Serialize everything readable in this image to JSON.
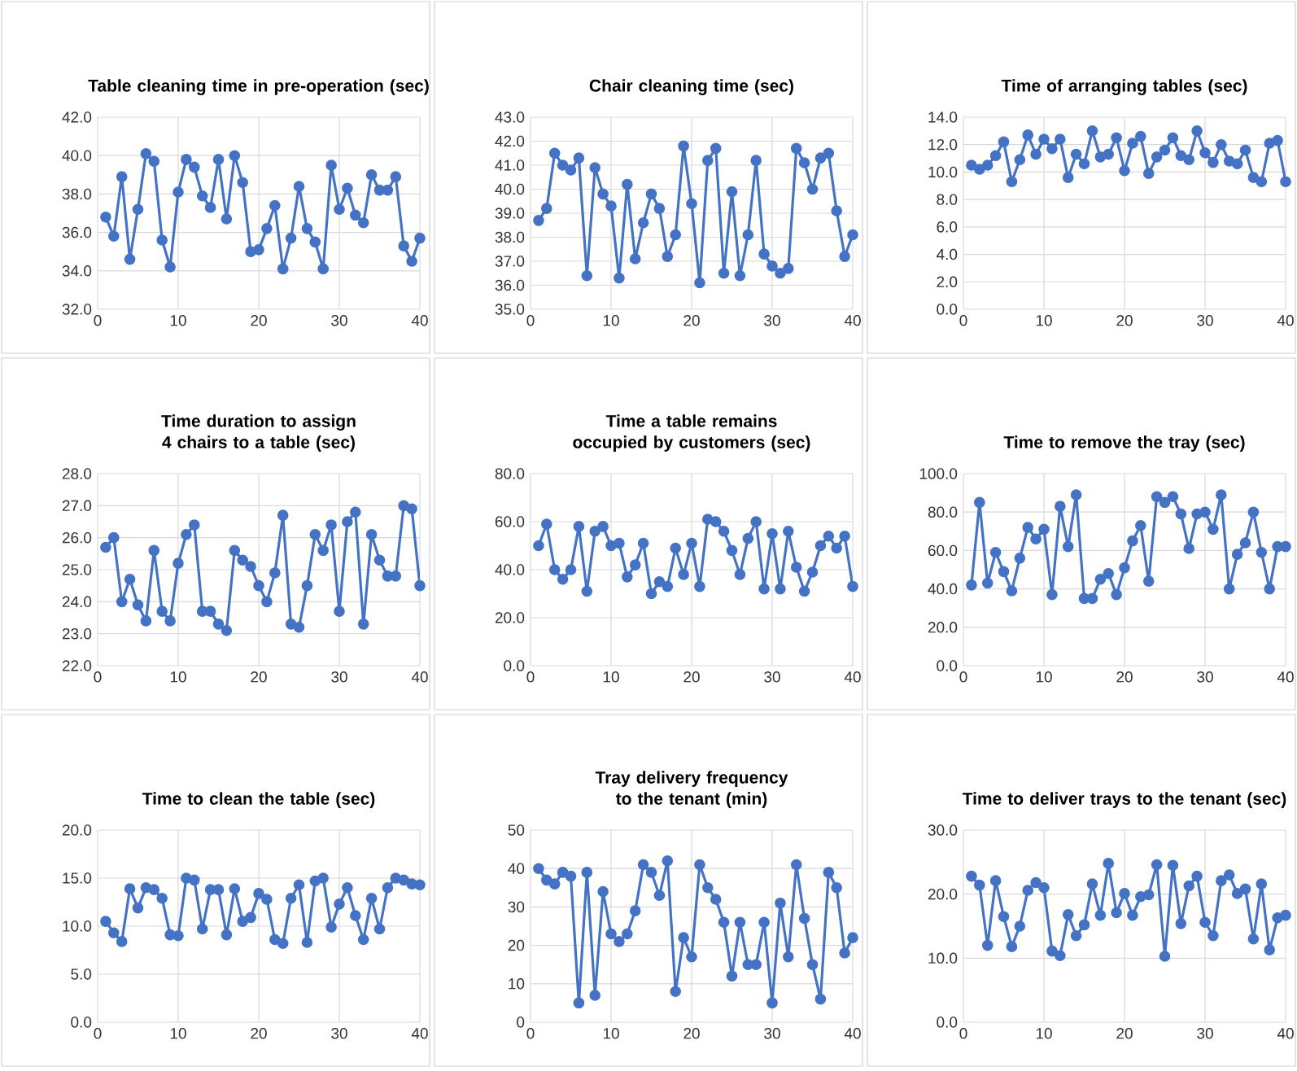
{
  "chart_data": [
    {
      "type": "line",
      "title": "Table cleaning time in pre-operation (sec)",
      "color": "#4472c4",
      "marker": "circle",
      "grid": true,
      "xlim": [
        0,
        40
      ],
      "xticks": [
        0,
        10,
        20,
        30,
        40
      ],
      "ylim": [
        32,
        42
      ],
      "yticks": [
        {
          "value": 32,
          "label": "32.0"
        },
        {
          "value": 34,
          "label": "34.0"
        },
        {
          "value": 36,
          "label": "36.0"
        },
        {
          "value": 38,
          "label": "38.0"
        },
        {
          "value": 40,
          "label": "40.0"
        },
        {
          "value": 42,
          "label": "42.0"
        }
      ],
      "x": [
        1,
        2,
        3,
        4,
        5,
        6,
        7,
        8,
        9,
        10,
        11,
        12,
        13,
        14,
        15,
        16,
        17,
        18,
        19,
        20,
        21,
        22,
        23,
        24,
        25,
        26,
        27,
        28,
        29,
        30,
        31,
        32,
        33,
        34,
        35,
        36,
        37,
        38,
        39,
        40
      ],
      "values": [
        36.8,
        35.8,
        38.9,
        34.6,
        37.2,
        40.1,
        39.7,
        35.6,
        34.2,
        38.1,
        39.8,
        39.4,
        37.9,
        37.3,
        39.8,
        36.7,
        40.0,
        38.6,
        35.0,
        35.1,
        36.2,
        37.4,
        34.1,
        35.7,
        38.4,
        36.2,
        35.5,
        34.1,
        39.5,
        37.2,
        38.3,
        36.9,
        36.5,
        39.0,
        38.2,
        38.2,
        38.9,
        35.3,
        34.5,
        35.7
      ]
    },
    {
      "type": "line",
      "title": "Chair cleaning time (sec)",
      "color": "#4472c4",
      "marker": "circle",
      "grid": true,
      "xlim": [
        0,
        40
      ],
      "xticks": [
        0,
        10,
        20,
        30,
        40
      ],
      "ylim": [
        35,
        43
      ],
      "yticks": [
        {
          "value": 35,
          "label": "35.0"
        },
        {
          "value": 36,
          "label": "36.0"
        },
        {
          "value": 37,
          "label": "37.0"
        },
        {
          "value": 38,
          "label": "38.0"
        },
        {
          "value": 39,
          "label": "39.0"
        },
        {
          "value": 40,
          "label": "40.0"
        },
        {
          "value": 41,
          "label": "41.0"
        },
        {
          "value": 42,
          "label": "42.0"
        },
        {
          "value": 43,
          "label": "43.0"
        }
      ],
      "x": [
        1,
        2,
        3,
        4,
        5,
        6,
        7,
        8,
        9,
        10,
        11,
        12,
        13,
        14,
        15,
        16,
        17,
        18,
        19,
        20,
        21,
        22,
        23,
        24,
        25,
        26,
        27,
        28,
        29,
        30,
        31,
        32,
        33,
        34,
        35,
        36,
        37,
        38,
        39,
        40
      ],
      "values": [
        38.7,
        39.2,
        41.5,
        41.0,
        40.8,
        41.3,
        36.4,
        40.9,
        39.8,
        39.3,
        36.3,
        40.2,
        37.1,
        38.6,
        39.8,
        39.2,
        37.2,
        38.1,
        41.8,
        39.4,
        36.1,
        41.2,
        41.7,
        36.5,
        39.9,
        36.4,
        38.1,
        41.2,
        37.3,
        36.8,
        36.5,
        36.7,
        41.7,
        41.1,
        40.0,
        41.3,
        41.5,
        39.1,
        37.2,
        38.1
      ]
    },
    {
      "type": "line",
      "title": "Time of arranging tables (sec)",
      "color": "#4472c4",
      "marker": "circle",
      "grid": true,
      "xlim": [
        0,
        40
      ],
      "xticks": [
        0,
        10,
        20,
        30,
        40
      ],
      "ylim": [
        0,
        14
      ],
      "yticks": [
        {
          "value": 0,
          "label": "0.0"
        },
        {
          "value": 2,
          "label": "2.0"
        },
        {
          "value": 4,
          "label": "4.0"
        },
        {
          "value": 6,
          "label": "6.0"
        },
        {
          "value": 8,
          "label": "8.0"
        },
        {
          "value": 10,
          "label": "10.0"
        },
        {
          "value": 12,
          "label": "12.0"
        },
        {
          "value": 14,
          "label": "14.0"
        }
      ],
      "x": [
        1,
        2,
        3,
        4,
        5,
        6,
        7,
        8,
        9,
        10,
        11,
        12,
        13,
        14,
        15,
        16,
        17,
        18,
        19,
        20,
        21,
        22,
        23,
        24,
        25,
        26,
        27,
        28,
        29,
        30,
        31,
        32,
        33,
        34,
        35,
        36,
        37,
        38,
        39,
        40
      ],
      "values": [
        10.5,
        10.2,
        10.5,
        11.2,
        12.2,
        9.3,
        10.9,
        12.7,
        11.3,
        12.4,
        11.7,
        12.4,
        9.6,
        11.3,
        10.6,
        13.0,
        11.1,
        11.3,
        12.5,
        10.1,
        12.1,
        12.6,
        9.9,
        11.1,
        11.6,
        12.5,
        11.2,
        10.9,
        13.0,
        11.4,
        10.7,
        12.0,
        10.8,
        10.6,
        11.6,
        9.6,
        9.3,
        12.1,
        12.3,
        9.3
      ]
    },
    {
      "type": "line",
      "title": "Time duration to assign 4 chairs to a table (sec)",
      "color": "#4472c4",
      "marker": "circle",
      "grid": true,
      "xlim": [
        0,
        40
      ],
      "xticks": [
        0,
        10,
        20,
        30,
        40
      ],
      "ylim": [
        22,
        28
      ],
      "yticks": [
        {
          "value": 22,
          "label": "22.0"
        },
        {
          "value": 23,
          "label": "23.0"
        },
        {
          "value": 24,
          "label": "24.0"
        },
        {
          "value": 25,
          "label": "25.0"
        },
        {
          "value": 26,
          "label": "26.0"
        },
        {
          "value": 27,
          "label": "27.0"
        },
        {
          "value": 28,
          "label": "28.0"
        }
      ],
      "x": [
        1,
        2,
        3,
        4,
        5,
        6,
        7,
        8,
        9,
        10,
        11,
        12,
        13,
        14,
        15,
        16,
        17,
        18,
        19,
        20,
        21,
        22,
        23,
        24,
        25,
        26,
        27,
        28,
        29,
        30,
        31,
        32,
        33,
        34,
        35,
        36,
        37,
        38,
        39,
        40
      ],
      "values": [
        25.7,
        26.0,
        24.0,
        24.7,
        23.9,
        23.4,
        25.6,
        23.7,
        23.4,
        25.2,
        26.1,
        26.4,
        23.7,
        23.7,
        23.3,
        23.1,
        25.6,
        25.3,
        25.1,
        24.5,
        24.0,
        24.9,
        26.7,
        23.3,
        23.2,
        24.5,
        26.1,
        25.6,
        26.4,
        23.7,
        26.5,
        26.8,
        23.3,
        26.1,
        25.3,
        24.8,
        24.8,
        27.0,
        26.9,
        24.5
      ]
    },
    {
      "type": "line",
      "title": "Time a table remains occupied by customers (sec)",
      "color": "#4472c4",
      "marker": "circle",
      "grid": true,
      "xlim": [
        0,
        40
      ],
      "xticks": [
        0,
        10,
        20,
        30,
        40
      ],
      "ylim": [
        0,
        80
      ],
      "yticks": [
        {
          "value": 0,
          "label": "0.0"
        },
        {
          "value": 20,
          "label": "20.0"
        },
        {
          "value": 40,
          "label": "40.0"
        },
        {
          "value": 60,
          "label": "60.0"
        },
        {
          "value": 80,
          "label": "80.0"
        }
      ],
      "x": [
        1,
        2,
        3,
        4,
        5,
        6,
        7,
        8,
        9,
        10,
        11,
        12,
        13,
        14,
        15,
        16,
        17,
        18,
        19,
        20,
        21,
        22,
        23,
        24,
        25,
        26,
        27,
        28,
        29,
        30,
        31,
        32,
        33,
        34,
        35,
        36,
        37,
        38,
        39,
        40
      ],
      "values": [
        50,
        59,
        40,
        36,
        40,
        58,
        31,
        56,
        58,
        50,
        51,
        37,
        42,
        51,
        30,
        35,
        33,
        49,
        38,
        51,
        33,
        61,
        60,
        56,
        48,
        38,
        53,
        60,
        32,
        55,
        32,
        56,
        41,
        31,
        39,
        50,
        54,
        49,
        54,
        33
      ]
    },
    {
      "type": "line",
      "title": "Time to remove the tray (sec)",
      "color": "#4472c4",
      "marker": "circle",
      "grid": true,
      "xlim": [
        0,
        40
      ],
      "xticks": [
        0,
        10,
        20,
        30,
        40
      ],
      "ylim": [
        0,
        100
      ],
      "yticks": [
        {
          "value": 0,
          "label": "0.0"
        },
        {
          "value": 20,
          "label": "20.0"
        },
        {
          "value": 40,
          "label": "40.0"
        },
        {
          "value": 60,
          "label": "60.0"
        },
        {
          "value": 80,
          "label": "80.0"
        },
        {
          "value": 100,
          "label": "100.0"
        }
      ],
      "x": [
        1,
        2,
        3,
        4,
        5,
        6,
        7,
        8,
        9,
        10,
        11,
        12,
        13,
        14,
        15,
        16,
        17,
        18,
        19,
        20,
        21,
        22,
        23,
        24,
        25,
        26,
        27,
        28,
        29,
        30,
        31,
        32,
        33,
        34,
        35,
        36,
        37,
        38,
        39,
        40
      ],
      "values": [
        42,
        85,
        43,
        59,
        49,
        39,
        56,
        72,
        66,
        71,
        37,
        83,
        62,
        89,
        35,
        35,
        45,
        48,
        37,
        51,
        65,
        73,
        44,
        88,
        85,
        88,
        79,
        61,
        79,
        80,
        71,
        89,
        40,
        58,
        64,
        80,
        59,
        40,
        62,
        62
      ]
    },
    {
      "type": "line",
      "title": "Time to clean the table (sec)",
      "color": "#4472c4",
      "marker": "circle",
      "grid": true,
      "xlim": [
        0,
        40
      ],
      "xticks": [
        0,
        10,
        20,
        30,
        40
      ],
      "ylim": [
        0,
        20
      ],
      "yticks": [
        {
          "value": 0,
          "label": "0.0"
        },
        {
          "value": 5,
          "label": "5.0"
        },
        {
          "value": 10,
          "label": "10.0"
        },
        {
          "value": 15,
          "label": "15.0"
        },
        {
          "value": 20,
          "label": "20.0"
        }
      ],
      "x": [
        1,
        2,
        3,
        4,
        5,
        6,
        7,
        8,
        9,
        10,
        11,
        12,
        13,
        14,
        15,
        16,
        17,
        18,
        19,
        20,
        21,
        22,
        23,
        24,
        25,
        26,
        27,
        28,
        29,
        30,
        31,
        32,
        33,
        34,
        35,
        36,
        37,
        38,
        39,
        40
      ],
      "values": [
        10.5,
        9.3,
        8.4,
        13.9,
        11.9,
        14.0,
        13.8,
        12.9,
        9.1,
        9.0,
        15.0,
        14.8,
        9.7,
        13.8,
        13.8,
        9.1,
        13.9,
        10.5,
        10.9,
        13.4,
        12.8,
        8.6,
        8.2,
        12.9,
        14.3,
        8.3,
        14.7,
        15.0,
        9.9,
        12.3,
        14.0,
        11.1,
        8.6,
        12.9,
        9.7,
        14.0,
        15.0,
        14.8,
        14.4,
        14.3
      ]
    },
    {
      "type": "line",
      "title": "Tray delivery frequency to the tenant (min)",
      "color": "#4472c4",
      "marker": "circle",
      "grid": true,
      "xlim": [
        0,
        40
      ],
      "xticks": [
        0,
        10,
        20,
        30,
        40
      ],
      "ylim": [
        0,
        50
      ],
      "yticks": [
        0,
        10,
        20,
        30,
        40,
        50
      ],
      "x": [
        1,
        2,
        3,
        4,
        5,
        6,
        7,
        8,
        9,
        10,
        11,
        12,
        13,
        14,
        15,
        16,
        17,
        18,
        19,
        20,
        21,
        22,
        23,
        24,
        25,
        26,
        27,
        28,
        29,
        30,
        31,
        32,
        33,
        34,
        35,
        36,
        37,
        38,
        39,
        40
      ],
      "values": [
        40,
        37,
        36,
        39,
        38,
        5,
        39,
        7,
        34,
        23,
        21,
        23,
        29,
        41,
        39,
        33,
        42,
        8,
        22,
        17,
        41,
        35,
        32,
        26,
        12,
        26,
        15,
        15,
        26,
        5,
        31,
        17,
        41,
        27,
        15,
        6,
        39,
        35,
        18,
        22
      ]
    },
    {
      "type": "line",
      "title": "Time to deliver trays to the tenant (sec)",
      "color": "#4472c4",
      "marker": "circle",
      "grid": true,
      "xlim": [
        0,
        40
      ],
      "xticks": [
        0,
        10,
        20,
        30,
        40
      ],
      "ylim": [
        0,
        30
      ],
      "yticks": [
        {
          "value": 0,
          "label": "0.0"
        },
        {
          "value": 10,
          "label": "10.0"
        },
        {
          "value": 20,
          "label": "20.0"
        },
        {
          "value": 30,
          "label": "30.0"
        }
      ],
      "x": [
        1,
        2,
        3,
        4,
        5,
        6,
        7,
        8,
        9,
        10,
        11,
        12,
        13,
        14,
        15,
        16,
        17,
        18,
        19,
        20,
        21,
        22,
        23,
        24,
        25,
        26,
        27,
        28,
        29,
        30,
        31,
        32,
        33,
        34,
        35,
        36,
        37,
        38,
        39,
        40
      ],
      "values": [
        22.8,
        21.4,
        12.0,
        22.1,
        16.5,
        11.8,
        15.0,
        20.6,
        21.8,
        21.0,
        11.1,
        10.4,
        16.8,
        13.5,
        15.2,
        21.6,
        16.7,
        24.8,
        17.1,
        20.1,
        16.7,
        19.6,
        19.9,
        24.6,
        10.3,
        24.5,
        15.4,
        21.3,
        22.8,
        15.6,
        13.5,
        22.1,
        23.0,
        20.1,
        20.8,
        13.0,
        21.6,
        11.3,
        16.3,
        16.7
      ]
    }
  ]
}
